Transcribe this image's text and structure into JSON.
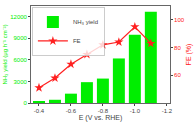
{
  "chart_data": {
    "type": "bar",
    "x": [
      -0.4,
      -0.5,
      -0.6,
      -0.7,
      -0.8,
      -0.9,
      -1.0,
      -1.1
    ],
    "series": [
      {
        "name": "NH₃ yield",
        "type": "bar",
        "color": "#00ee00",
        "values": [
          150,
          450,
          1300,
          2900,
          3400,
          6200,
          9500,
          12700
        ]
      },
      {
        "name": "FE",
        "type": "line",
        "axis": "y2",
        "color": "#ff2020",
        "marker": "star",
        "line_style": "solid",
        "values": [
          51,
          58,
          68,
          75,
          82,
          84,
          95,
          83
        ]
      }
    ],
    "xlabel": "E (V vs. RHE)",
    "ylabel": "NH₃ yield (μg h⁻¹ cm⁻²)",
    "y2label": "FE (%)",
    "xlim": [
      -0.35,
      -1.22
    ],
    "xticks": [
      -0.4,
      -0.6,
      -0.8,
      {
        "value": -1.0,
        "label": "-1.0"
      },
      -1.2
    ],
    "ylim": [
      0,
      13500
    ],
    "yticks": [
      0,
      3000,
      6000,
      9000,
      12000
    ],
    "y2lim": [
      40,
      110
    ],
    "y2ticks": [
      60,
      80,
      100
    ],
    "legend": "upper left",
    "grid": false
  }
}
